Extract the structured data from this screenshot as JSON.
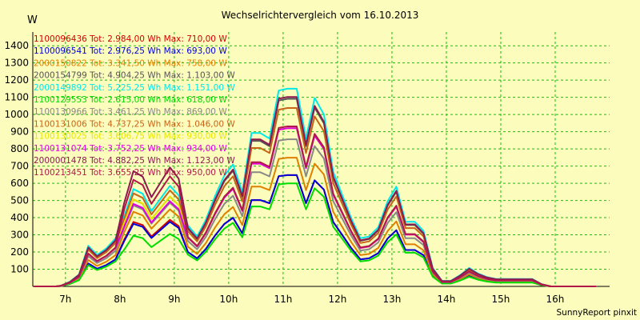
{
  "chart_data": {
    "type": "line",
    "title": "Wechselrichtervergleich vom 16.10.2013",
    "ylabel": "W",
    "xlabel": "",
    "footer": "SunnyReport pinxit",
    "ylim": [
      0,
      1480
    ],
    "xlim": [
      6.4,
      17.0
    ],
    "yticks": [
      100,
      200,
      300,
      400,
      500,
      600,
      700,
      800,
      900,
      1000,
      1100,
      1200,
      1300,
      1400
    ],
    "xticks": [
      {
        "value": 7,
        "label": "7h"
      },
      {
        "value": 8,
        "label": "8h"
      },
      {
        "value": 9,
        "label": "9h"
      },
      {
        "value": 10,
        "label": "10h"
      },
      {
        "value": 11,
        "label": "11h"
      },
      {
        "value": 12,
        "label": "12h"
      },
      {
        "value": 13,
        "label": "13h"
      },
      {
        "value": 14,
        "label": "14h"
      },
      {
        "value": 15,
        "label": "15h"
      },
      {
        "value": 16,
        "label": "16h"
      }
    ],
    "grid": true,
    "legend_position": "top-left",
    "x": [
      6.42,
      6.83,
      6.92,
      7.08,
      7.25,
      7.42,
      7.58,
      7.75,
      7.92,
      8.08,
      8.25,
      8.42,
      8.58,
      8.75,
      8.92,
      9.08,
      9.25,
      9.42,
      9.58,
      9.75,
      9.92,
      10.08,
      10.25,
      10.42,
      10.58,
      10.75,
      10.92,
      11.08,
      11.25,
      11.42,
      11.58,
      11.75,
      11.92,
      12.08,
      12.25,
      12.42,
      12.58,
      12.75,
      12.92,
      13.08,
      13.25,
      13.42,
      13.58,
      13.75,
      13.92,
      14.08,
      14.25,
      14.42,
      14.58,
      14.75,
      14.92,
      15.08,
      15.25,
      15.42,
      15.58,
      15.75,
      15.92,
      16.08,
      16.25,
      16.42,
      16.58,
      16.75
    ],
    "base": [
      0,
      0,
      4,
      25,
      65,
      220,
      170,
      205,
      260,
      450,
      620,
      590,
      480,
      560,
      640,
      580,
      330,
      270,
      360,
      490,
      600,
      660,
      510,
      830,
      830,
      800,
      1060,
      1070,
      1070,
      800,
      1020,
      930,
      620,
      500,
      370,
      260,
      270,
      320,
      460,
      540,
      350,
      350,
      300,
      100,
      30,
      30,
      60,
      100,
      70,
      50,
      40,
      40,
      40,
      40,
      40,
      12,
      0,
      0,
      0,
      0,
      0,
      0
    ],
    "series": [
      {
        "name": "1100096436",
        "label": "1100096436 Tot: 2.984,00 Wh Max: 710,00 W",
        "color": "#d40000",
        "peak": 710,
        "scale": 0.605,
        "morning": 1.0
      },
      {
        "name": "1100096541",
        "label": "1100096541 Tot: 2.976,25 Wh Max: 693,00 W",
        "color": "#0000dd",
        "peak": 693,
        "scale": 0.605,
        "morning": 0.97
      },
      {
        "name": "2000150822",
        "label": "2000150822 Tot: 3.341,50 Wh Max: 758,00 W",
        "color": "#e08000",
        "peak": 758,
        "scale": 0.7,
        "morning": 1.0
      },
      {
        "name": "2000154799",
        "label": "2000154799 Tot: 4.904,25 Wh Max: 1.103,00 W",
        "color": "#555555",
        "peak": 1103,
        "scale": 1.02,
        "morning": 0.8
      },
      {
        "name": "2000149892",
        "label": "2000149892 Tot: 5.225,25 Wh Max: 1.151,00 W",
        "color": "#00e8e8",
        "peak": 1151,
        "scale": 1.075,
        "morning": 0.85
      },
      {
        "name": "1100129553",
        "label": "1100129553 Tot: 2.615,00 Wh Max: 618,00 W",
        "color": "#00dd00",
        "peak": 618,
        "scale": 0.56,
        "morning": 0.85
      },
      {
        "name": "1100130966",
        "label": "1100130966 Tot: 3.461,25 Wh Max: 869,00 W",
        "color": "#888888",
        "peak": 869,
        "scale": 0.8,
        "morning": 0.95
      },
      {
        "name": "1100131006",
        "label": "1100131006 Tot: 4.737,25 Wh Max: 1.046,00 W",
        "color": "#c86418",
        "peak": 1046,
        "scale": 0.97,
        "morning": 0.9
      },
      {
        "name": "1100130025",
        "label": "1100130025 Tot: 3.606,75 Wh Max: 930,00 W",
        "color": "#e8e800",
        "peak": 930,
        "scale": 0.86,
        "morning": 0.95
      },
      {
        "name": "1100131074",
        "label": "1100131074 Tot: 3.752,25 Wh Max: 934,00 W",
        "color": "#e000e0",
        "peak": 934,
        "scale": 0.86,
        "morning": 0.9
      },
      {
        "name": "2000001478",
        "label": "2000001478 Tot: 4.882,25 Wh Max: 1.123,00 W",
        "color": "#8a1a50",
        "peak": 1123,
        "scale": 1.03,
        "morning": 1.05
      },
      {
        "name": "1100213451",
        "label": "1100213451 Tot: 3.655,25 Wh Max: 950,00 W",
        "color": "#b01848",
        "peak": 950,
        "scale": 0.87,
        "morning": 1.15
      }
    ]
  }
}
